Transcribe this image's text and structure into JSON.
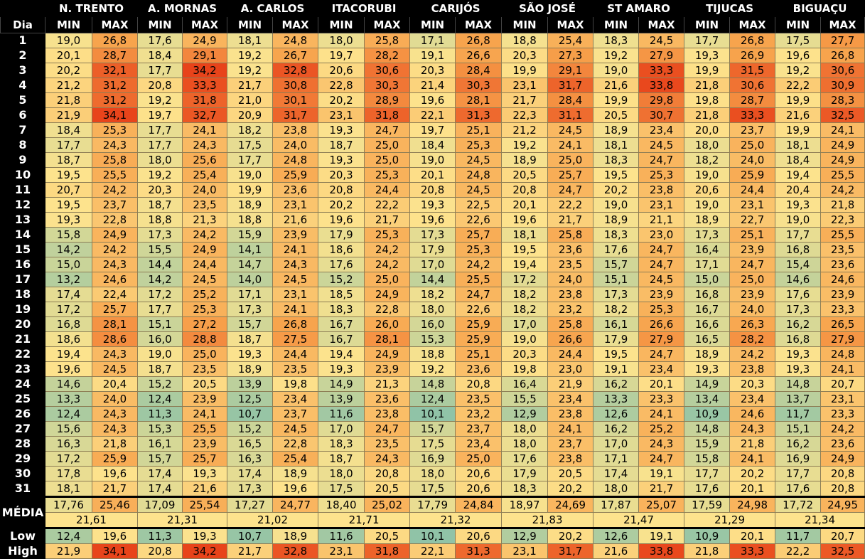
{
  "header": {
    "dia_label": "Dia",
    "cities": [
      "N. TRENTO",
      "A. MORNAS",
      "A. CARLOS",
      "ITACORUBI",
      "CARIJÓS",
      "SÃO JOSÉ",
      "ST AMARO",
      "TIJUCAS",
      "BIGUAÇU"
    ],
    "min_label": "MIN",
    "max_label": "MAX"
  },
  "rows": [
    {
      "day": "1",
      "v": [
        "19,0",
        "26,8",
        "17,6",
        "24,9",
        "18,1",
        "24,8",
        "18,0",
        "25,8",
        "17,1",
        "26,8",
        "18,8",
        "25,4",
        "18,3",
        "24,5",
        "17,7",
        "26,8",
        "17,5",
        "27,7"
      ]
    },
    {
      "day": "2",
      "v": [
        "20,1",
        "28,7",
        "18,4",
        "29,1",
        "19,2",
        "26,7",
        "19,7",
        "28,2",
        "19,1",
        "26,6",
        "20,3",
        "27,3",
        "19,2",
        "27,9",
        "19,3",
        "26,9",
        "19,6",
        "26,8"
      ]
    },
    {
      "day": "3",
      "v": [
        "20,2",
        "32,1",
        "17,7",
        "34,2",
        "19,2",
        "32,8",
        "20,6",
        "30,6",
        "20,3",
        "28,4",
        "19,9",
        "29,1",
        "19,0",
        "33,3",
        "19,9",
        "31,5",
        "19,2",
        "30,6"
      ]
    },
    {
      "day": "4",
      "v": [
        "21,2",
        "31,2",
        "20,8",
        "33,3",
        "21,7",
        "30,8",
        "22,8",
        "30,3",
        "21,4",
        "30,3",
        "23,1",
        "31,7",
        "21,6",
        "33,8",
        "21,8",
        "30,6",
        "22,2",
        "30,9"
      ]
    },
    {
      "day": "5",
      "v": [
        "21,8",
        "31,2",
        "19,2",
        "31,8",
        "21,0",
        "30,1",
        "20,2",
        "28,9",
        "19,6",
        "28,1",
        "21,7",
        "28,4",
        "19,9",
        "29,8",
        "19,8",
        "28,7",
        "19,9",
        "28,3"
      ]
    },
    {
      "day": "6",
      "v": [
        "21,9",
        "34,1",
        "19,7",
        "32,7",
        "20,9",
        "31,7",
        "23,1",
        "31,8",
        "22,1",
        "31,3",
        "22,3",
        "31,1",
        "20,5",
        "30,7",
        "21,8",
        "33,3",
        "21,6",
        "32,5"
      ]
    },
    {
      "day": "7",
      "v": [
        "18,4",
        "25,3",
        "17,7",
        "24,1",
        "18,2",
        "23,8",
        "19,3",
        "24,7",
        "19,7",
        "25,1",
        "21,2",
        "24,5",
        "18,9",
        "23,4",
        "20,0",
        "23,7",
        "19,9",
        "24,1"
      ]
    },
    {
      "day": "8",
      "v": [
        "17,7",
        "24,3",
        "17,7",
        "24,3",
        "17,5",
        "24,0",
        "18,7",
        "25,0",
        "18,4",
        "25,3",
        "19,2",
        "24,1",
        "18,1",
        "24,5",
        "18,0",
        "25,0",
        "18,1",
        "24,9"
      ]
    },
    {
      "day": "9",
      "v": [
        "18,7",
        "25,8",
        "18,0",
        "25,6",
        "17,7",
        "24,8",
        "19,3",
        "25,0",
        "19,0",
        "24,5",
        "18,9",
        "25,0",
        "18,3",
        "24,7",
        "18,2",
        "24,0",
        "18,4",
        "24,9"
      ]
    },
    {
      "day": "10",
      "v": [
        "19,5",
        "25,5",
        "19,2",
        "25,4",
        "19,0",
        "25,9",
        "20,3",
        "25,3",
        "20,1",
        "24,8",
        "20,5",
        "25,7",
        "19,5",
        "25,3",
        "19,0",
        "25,9",
        "19,4",
        "25,5"
      ]
    },
    {
      "day": "11",
      "v": [
        "20,7",
        "24,2",
        "20,3",
        "24,0",
        "19,9",
        "23,6",
        "20,8",
        "24,4",
        "20,8",
        "24,5",
        "20,8",
        "24,7",
        "20,2",
        "23,8",
        "20,6",
        "24,4",
        "20,4",
        "24,2"
      ]
    },
    {
      "day": "12",
      "v": [
        "19,5",
        "23,7",
        "18,7",
        "23,5",
        "18,9",
        "23,1",
        "20,2",
        "22,2",
        "19,3",
        "22,5",
        "20,1",
        "22,2",
        "19,0",
        "23,1",
        "19,0",
        "23,1",
        "19,3",
        "21,8"
      ]
    },
    {
      "day": "13",
      "v": [
        "19,3",
        "22,8",
        "18,8",
        "21,3",
        "18,8",
        "21,6",
        "19,6",
        "21,7",
        "19,6",
        "22,6",
        "19,6",
        "21,7",
        "18,9",
        "21,1",
        "18,9",
        "22,7",
        "19,0",
        "22,3"
      ]
    },
    {
      "day": "14",
      "v": [
        "15,8",
        "24,9",
        "17,3",
        "24,2",
        "15,9",
        "23,9",
        "17,9",
        "25,3",
        "17,3",
        "25,7",
        "18,1",
        "25,8",
        "18,3",
        "23,0",
        "17,3",
        "25,1",
        "17,7",
        "25,5"
      ]
    },
    {
      "day": "15",
      "v": [
        "14,2",
        "24,2",
        "15,5",
        "24,9",
        "14,1",
        "24,1",
        "18,6",
        "24,2",
        "17,9",
        "25,3",
        "19,5",
        "23,6",
        "17,6",
        "24,7",
        "16,4",
        "23,9",
        "16,8",
        "23,5"
      ]
    },
    {
      "day": "16",
      "v": [
        "15,0",
        "24,3",
        "14,4",
        "24,4",
        "14,7",
        "24,3",
        "17,6",
        "24,2",
        "17,0",
        "24,2",
        "19,4",
        "23,5",
        "15,7",
        "24,7",
        "17,1",
        "24,7",
        "15,4",
        "23,6"
      ]
    },
    {
      "day": "17",
      "v": [
        "13,2",
        "24,6",
        "14,2",
        "24,5",
        "14,0",
        "24,5",
        "15,2",
        "25,0",
        "14,4",
        "25,5",
        "17,2",
        "24,0",
        "15,1",
        "24,5",
        "15,0",
        "25,0",
        "14,6",
        "24,6"
      ]
    },
    {
      "day": "18",
      "v": [
        "17,4",
        "22,4",
        "17,2",
        "25,2",
        "17,1",
        "23,1",
        "18,5",
        "24,9",
        "18,2",
        "24,7",
        "18,2",
        "23,8",
        "17,3",
        "23,9",
        "16,8",
        "23,9",
        "17,6",
        "23,9"
      ]
    },
    {
      "day": "19",
      "v": [
        "17,2",
        "25,7",
        "17,7",
        "25,3",
        "17,3",
        "24,1",
        "18,3",
        "22,8",
        "18,0",
        "22,6",
        "18,2",
        "23,2",
        "18,2",
        "25,3",
        "16,7",
        "24,0",
        "17,3",
        "23,3"
      ]
    },
    {
      "day": "20",
      "v": [
        "16,8",
        "28,1",
        "15,1",
        "27,2",
        "15,7",
        "26,8",
        "16,7",
        "26,0",
        "16,0",
        "25,9",
        "17,0",
        "25,8",
        "16,1",
        "26,6",
        "16,6",
        "26,3",
        "16,2",
        "26,5"
      ]
    },
    {
      "day": "21",
      "v": [
        "18,6",
        "28,6",
        "16,0",
        "28,8",
        "18,7",
        "27,5",
        "16,7",
        "28,1",
        "15,3",
        "25,9",
        "19,0",
        "26,6",
        "17,9",
        "27,9",
        "16,5",
        "28,2",
        "16,8",
        "27,9"
      ]
    },
    {
      "day": "22",
      "v": [
        "19,4",
        "24,3",
        "19,0",
        "25,0",
        "19,3",
        "24,4",
        "19,4",
        "24,9",
        "18,8",
        "25,1",
        "20,3",
        "24,4",
        "19,5",
        "24,7",
        "18,9",
        "24,2",
        "19,3",
        "24,8"
      ]
    },
    {
      "day": "23",
      "v": [
        "19,6",
        "24,5",
        "18,7",
        "23,5",
        "18,9",
        "23,5",
        "19,3",
        "23,9",
        "19,2",
        "23,6",
        "19,8",
        "23,0",
        "19,1",
        "23,4",
        "19,3",
        "23,8",
        "19,3",
        "24,1"
      ]
    },
    {
      "day": "24",
      "v": [
        "14,6",
        "20,4",
        "15,2",
        "20,5",
        "13,9",
        "19,8",
        "14,9",
        "21,3",
        "14,8",
        "20,8",
        "16,4",
        "21,9",
        "16,2",
        "20,1",
        "14,9",
        "20,3",
        "14,8",
        "20,7"
      ]
    },
    {
      "day": "25",
      "v": [
        "13,3",
        "24,0",
        "12,4",
        "23,9",
        "12,5",
        "23,4",
        "13,9",
        "23,6",
        "12,4",
        "23,5",
        "15,5",
        "23,4",
        "13,3",
        "23,3",
        "13,4",
        "23,4",
        "13,7",
        "23,1"
      ]
    },
    {
      "day": "26",
      "v": [
        "12,4",
        "24,3",
        "11,3",
        "24,1",
        "10,7",
        "23,7",
        "11,6",
        "23,8",
        "10,1",
        "23,2",
        "12,9",
        "23,8",
        "12,6",
        "24,1",
        "10,9",
        "24,6",
        "11,7",
        "23,3"
      ]
    },
    {
      "day": "27",
      "v": [
        "15,6",
        "24,3",
        "15,3",
        "25,5",
        "15,2",
        "24,5",
        "17,0",
        "24,7",
        "15,7",
        "23,7",
        "18,0",
        "24,1",
        "16,2",
        "25,2",
        "14,8",
        "24,3",
        "15,1",
        "24,2"
      ]
    },
    {
      "day": "28",
      "v": [
        "16,3",
        "21,8",
        "16,1",
        "23,9",
        "16,5",
        "22,8",
        "18,3",
        "23,5",
        "17,5",
        "23,4",
        "18,0",
        "23,7",
        "17,0",
        "24,3",
        "15,9",
        "21,8",
        "16,2",
        "23,6"
      ]
    },
    {
      "day": "29",
      "v": [
        "17,2",
        "25,9",
        "15,7",
        "25,7",
        "16,3",
        "25,4",
        "18,7",
        "24,3",
        "16,9",
        "25,0",
        "17,6",
        "23,8",
        "17,1",
        "24,7",
        "15,8",
        "24,1",
        "16,9",
        "24,9"
      ]
    },
    {
      "day": "30",
      "v": [
        "17,8",
        "19,6",
        "17,4",
        "19,3",
        "17,4",
        "18,9",
        "18,0",
        "20,8",
        "18,0",
        "20,6",
        "17,9",
        "20,5",
        "17,4",
        "19,1",
        "17,7",
        "20,2",
        "17,7",
        "20,8"
      ]
    },
    {
      "day": "31",
      "v": [
        "18,1",
        "21,7",
        "17,4",
        "21,6",
        "17,3",
        "19,6",
        "17,5",
        "20,5",
        "17,5",
        "20,6",
        "18,3",
        "20,2",
        "18,0",
        "21,7",
        "17,6",
        "20,1",
        "17,6",
        "20,8"
      ]
    }
  ],
  "media": {
    "label": "MÉDIA",
    "v": [
      "17,76",
      "25,46",
      "17,09",
      "25,54",
      "17,27",
      "24,77",
      "18,40",
      "25,02",
      "17,79",
      "24,84",
      "18,97",
      "24,69",
      "17,87",
      "25,07",
      "17,59",
      "24,98",
      "17,72",
      "24,95"
    ],
    "avg": [
      "21,61",
      "21,31",
      "21,02",
      "21,71",
      "21,32",
      "21,83",
      "21,47",
      "21,29",
      "21,34"
    ]
  },
  "low": {
    "label": "Low",
    "v": [
      "12,4",
      "19,6",
      "11,3",
      "19,3",
      "10,7",
      "18,9",
      "11,6",
      "20,5",
      "10,1",
      "20,6",
      "12,9",
      "20,2",
      "12,6",
      "19,1",
      "10,9",
      "20,1",
      "11,7",
      "20,7"
    ]
  },
  "high": {
    "label": "High",
    "v": [
      "21,9",
      "34,1",
      "20,8",
      "34,2",
      "21,7",
      "32,8",
      "23,1",
      "31,8",
      "22,1",
      "31,3",
      "23,1",
      "31,7",
      "21,6",
      "33,8",
      "21,8",
      "33,3",
      "22,2",
      "32,5"
    ]
  },
  "colors": {
    "cold": "#8fc3a7",
    "mild": "#fde38d",
    "warm": "#f7a24b",
    "hot": "#e8431a",
    "header_bg": "#000000",
    "header_text": "#ffffff"
  }
}
